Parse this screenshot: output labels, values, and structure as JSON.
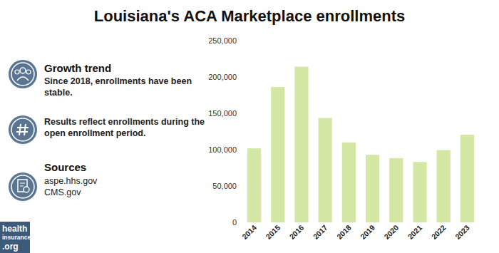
{
  "chart_data": {
    "type": "bar",
    "title": "Louisiana's ACA Marketplace enrollments",
    "categories": [
      "2014",
      "2015",
      "2016",
      "2017",
      "2018",
      "2019",
      "2020",
      "2021",
      "2022",
      "2023"
    ],
    "values": [
      101778,
      186277,
      214148,
      143577,
      109855,
      92948,
      88414,
      83012,
      99358,
      120519
    ],
    "color": "#d4e7a5",
    "ylim": [
      0,
      250000
    ],
    "yticks": [
      0,
      {
        "value": 50000,
        "label": "50,000"
      },
      {
        "value": 100000,
        "label": "100,000"
      },
      {
        "value": 150000,
        "label": "150,000"
      },
      {
        "value": 200000,
        "label": "200,000"
      },
      {
        "value": 250000,
        "label": "250,000"
      }
    ],
    "grid": false
  },
  "sidebar": {
    "growth_title": "Growth trend",
    "growth_text": [
      "Since 2018, enrollments have been",
      "stable."
    ],
    "note_text": [
      "Results reflect enrollments during the",
      "open enrollment period."
    ],
    "sources_title": "Sources",
    "sources": [
      "aspe.hhs.gov",
      "CMS.gov"
    ]
  },
  "logo": [
    "health",
    "insurance",
    ".org"
  ]
}
